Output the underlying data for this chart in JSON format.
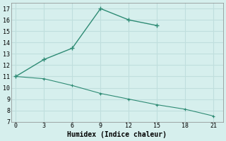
{
  "line1_x": [
    0,
    3,
    6,
    9,
    12,
    15
  ],
  "line1_y": [
    11,
    12.5,
    13.5,
    17,
    16,
    15.5
  ],
  "line2_x": [
    0,
    3,
    6,
    9,
    12,
    15,
    18,
    21
  ],
  "line2_y": [
    11,
    10.8,
    10.2,
    9.5,
    9.0,
    8.5,
    8.1,
    7.5
  ],
  "line_color": "#2e8b74",
  "bg_color": "#d6efed",
  "grid_color": "#c0dedd",
  "xlabel": "Humidex (Indice chaleur)",
  "xlim": [
    -0.5,
    22
  ],
  "ylim": [
    7,
    17.5
  ],
  "xticks": [
    0,
    3,
    6,
    9,
    12,
    15,
    18,
    21
  ],
  "yticks": [
    7,
    8,
    9,
    10,
    11,
    12,
    13,
    14,
    15,
    16,
    17
  ],
  "font": "monospace",
  "tick_fontsize": 6,
  "xlabel_fontsize": 7
}
